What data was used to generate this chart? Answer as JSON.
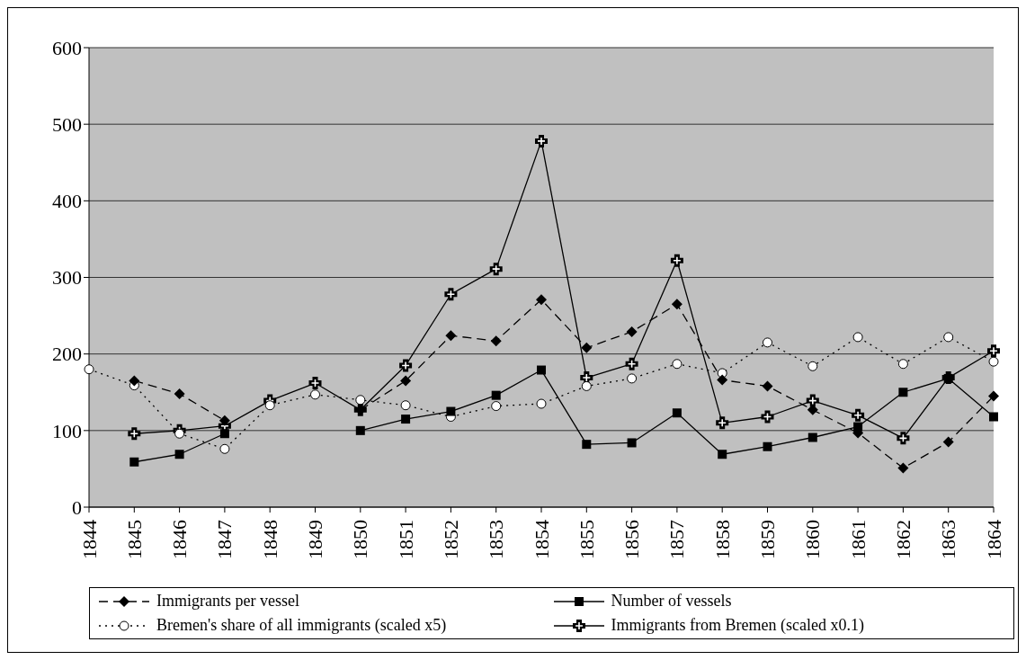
{
  "chart_data": {
    "type": "line",
    "categories": [
      "1844",
      "1845",
      "1846",
      "1847",
      "1848",
      "1849",
      "1850",
      "1851",
      "1852",
      "1853",
      "1854",
      "1855",
      "1856",
      "1857",
      "1858",
      "1859",
      "1860",
      "1861",
      "1862",
      "1863",
      "1864"
    ],
    "series": [
      {
        "name": "Immigrants per vessel",
        "color": "#000000",
        "marker": "diamond",
        "line_style": "dashed",
        "values": [
          null,
          165,
          148,
          113,
          null,
          null,
          127,
          165,
          224,
          217,
          271,
          208,
          229,
          265,
          166,
          158,
          127,
          97,
          51,
          85,
          145
        ]
      },
      {
        "name": "Number of vessels",
        "color": "#000000",
        "marker": "square",
        "line_style": "solid",
        "values": [
          null,
          59,
          69,
          96,
          null,
          null,
          100,
          115,
          125,
          146,
          179,
          82,
          84,
          123,
          69,
          79,
          91,
          105,
          150,
          168,
          118
        ]
      },
      {
        "name": "Bremen's share of all immigrants (scaled x5)",
        "color": "#000000",
        "marker": "circle",
        "line_style": "dotted",
        "values": [
          180,
          159,
          96,
          76,
          133,
          147,
          140,
          133,
          118,
          132,
          135,
          158,
          168,
          187,
          175,
          215,
          184,
          222,
          187,
          222,
          190
        ]
      },
      {
        "name": "Immigrants from Bremen (scaled x0.1)",
        "color": "#000000",
        "marker": "cross",
        "line_style": "solid",
        "values": [
          null,
          96,
          100,
          106,
          139,
          162,
          127,
          185,
          278,
          311,
          478,
          169,
          187,
          322,
          110,
          118,
          139,
          120,
          90,
          169,
          204
        ]
      }
    ],
    "ylim": [
      0,
      600
    ],
    "yticks": [
      0,
      100,
      200,
      300,
      400,
      500,
      600
    ],
    "grid": "y",
    "legend": "bottom"
  }
}
